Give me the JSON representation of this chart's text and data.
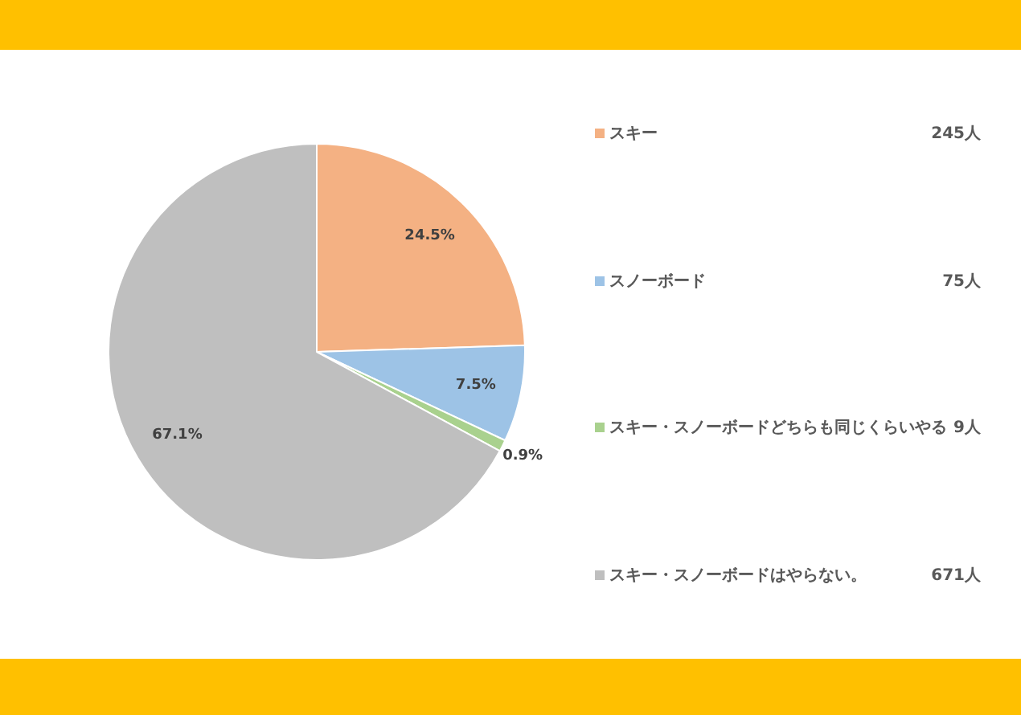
{
  "chart_data": {
    "type": "pie",
    "categories": [
      "スキー",
      "スノーボード",
      "スキー・スノーボードどちらも同じくらいやる",
      "スキー・スノーボードはやらない。"
    ],
    "values": [
      24.5,
      7.5,
      0.9,
      67.1
    ],
    "colors": [
      "#f4b183",
      "#9dc3e6",
      "#a9d18e",
      "#bfbfbf"
    ],
    "value_labels": [
      "24.5%",
      "7.5%",
      "0.9%",
      "67.1%"
    ],
    "annotations": [
      "245人",
      "75人",
      "9人",
      "671人"
    ],
    "legend": "right"
  }
}
